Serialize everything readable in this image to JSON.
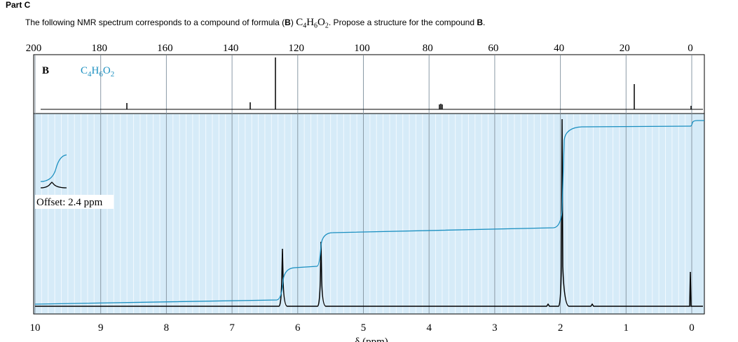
{
  "header": {
    "title": "Part C"
  },
  "question": {
    "segments": [
      "The following NMR spectrum corresponds to a compound of formula (",
      "B",
      ") ",
      "C",
      "4",
      "H",
      "6",
      "O",
      "2",
      ". Propose a structure for the compound ",
      "B",
      "."
    ]
  },
  "spectrum": {
    "top_ticks": [
      200,
      180,
      160,
      140,
      120,
      100,
      80,
      60,
      40,
      20,
      0
    ],
    "bottom_ticks": [
      10,
      9,
      8,
      7,
      6,
      5,
      4,
      3,
      2,
      1,
      0
    ],
    "compound_label": "B",
    "formula": [
      "C",
      "4",
      "H",
      "6",
      "O",
      "2"
    ],
    "offset_label": "Offset: 2.4 ppm",
    "axis_label": "δ (ppm)"
  }
}
